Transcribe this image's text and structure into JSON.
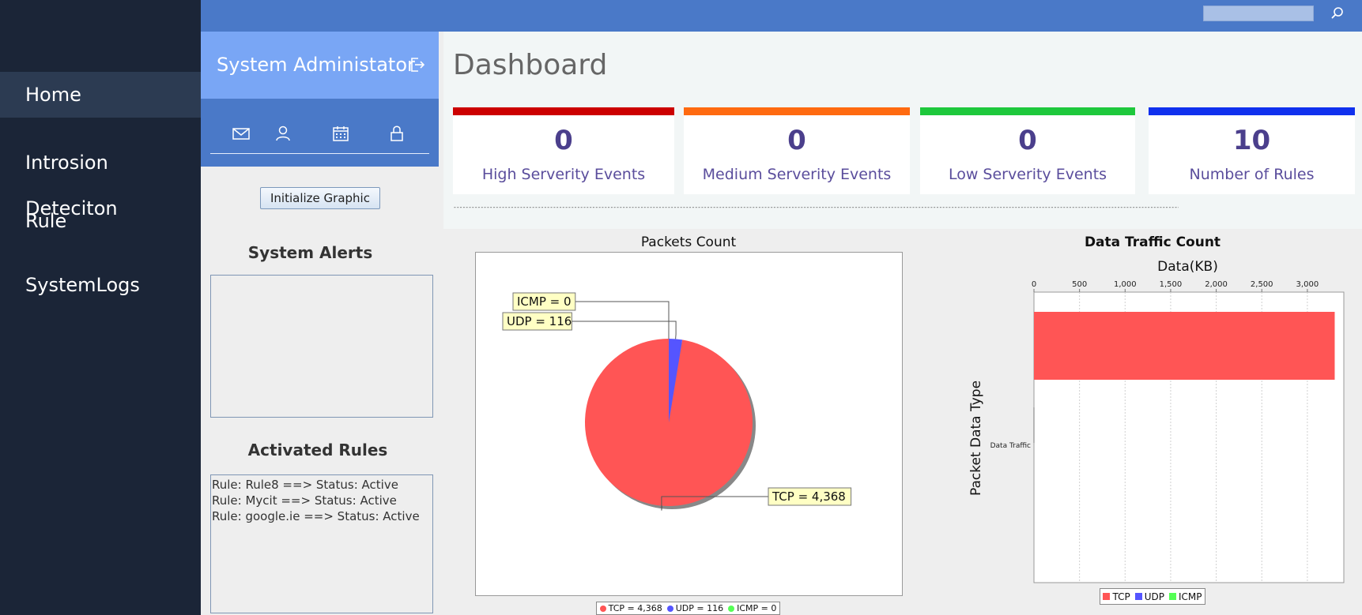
{
  "nav": {
    "items": [
      {
        "label": "Home",
        "active": true
      },
      {
        "label": "Introsion Deteciton",
        "active": false
      },
      {
        "label": "Rule",
        "active": false
      },
      {
        "label": "SystemLogs",
        "active": false
      }
    ]
  },
  "topbar": {
    "search_value": "",
    "search_icon": "search-icon"
  },
  "admin": {
    "title": "System Administator",
    "logout_icon": "logout-icon",
    "icons": [
      "mail-icon",
      "user-icon",
      "calendar-icon",
      "lock-icon"
    ]
  },
  "init_button_label": "Initialize Graphic",
  "alerts": {
    "heading": "System Alerts",
    "items": []
  },
  "rules": {
    "heading": "Activated Rules",
    "items": [
      "Rule: Rule8 ==> Status: Active",
      "Rule: Mycit ==> Status: Active",
      "Rule: google.ie ==> Status: Active"
    ]
  },
  "dashboard": {
    "title": "Dashboard",
    "dashes": "-------------------------------------------------------------------------------------------------------------------------------------------------------------------------------------------------------------------------------------------------------------------------",
    "cards": [
      {
        "value": "0",
        "label": "High Serverity Events",
        "color": "#cc0000"
      },
      {
        "value": "0",
        "label": "Medium Serverity Events",
        "color": "#ff6a10"
      },
      {
        "value": "0",
        "label": "Low Serverity Events",
        "color": "#1ec83c"
      },
      {
        "value": "10",
        "label": "Number of Rules",
        "color": "#1030ee"
      }
    ]
  },
  "chart_data": [
    {
      "type": "pie",
      "title": "Packets Count",
      "slices": [
        {
          "name": "TCP",
          "value": 4368,
          "label": "TCP = 4,368",
          "color": "#ff5555"
        },
        {
          "name": "UDP",
          "value": 116,
          "label": "UDP = 116",
          "color": "#5555ff"
        },
        {
          "name": "ICMP",
          "value": 0,
          "label": "ICMP = 0",
          "color": "#55ff55"
        }
      ],
      "legend": [
        "TCP = 4,368",
        "UDP = 116",
        "ICMP = 0"
      ],
      "legend_position": "bottom"
    },
    {
      "type": "bar",
      "orientation": "horizontal",
      "title": "Data Traffic Count",
      "xlabel": "Data(KB)",
      "ylabel": "Packet Data Type",
      "categories": [
        "Data Traffic"
      ],
      "series": [
        {
          "name": "TCP",
          "values": [
            3300
          ],
          "color": "#ff5555"
        },
        {
          "name": "UDP",
          "values": [
            0
          ],
          "color": "#5555ff"
        },
        {
          "name": "ICMP",
          "values": [
            0
          ],
          "color": "#55ff55"
        }
      ],
      "xlim": [
        0,
        3400
      ],
      "xticks": [
        0,
        500,
        1000,
        1500,
        2000,
        2500,
        3000
      ],
      "xtick_labels": [
        "0",
        "500",
        "1,000",
        "1,500",
        "2,000",
        "2,500",
        "3,000"
      ],
      "grid": true,
      "legend_position": "bottom"
    }
  ]
}
